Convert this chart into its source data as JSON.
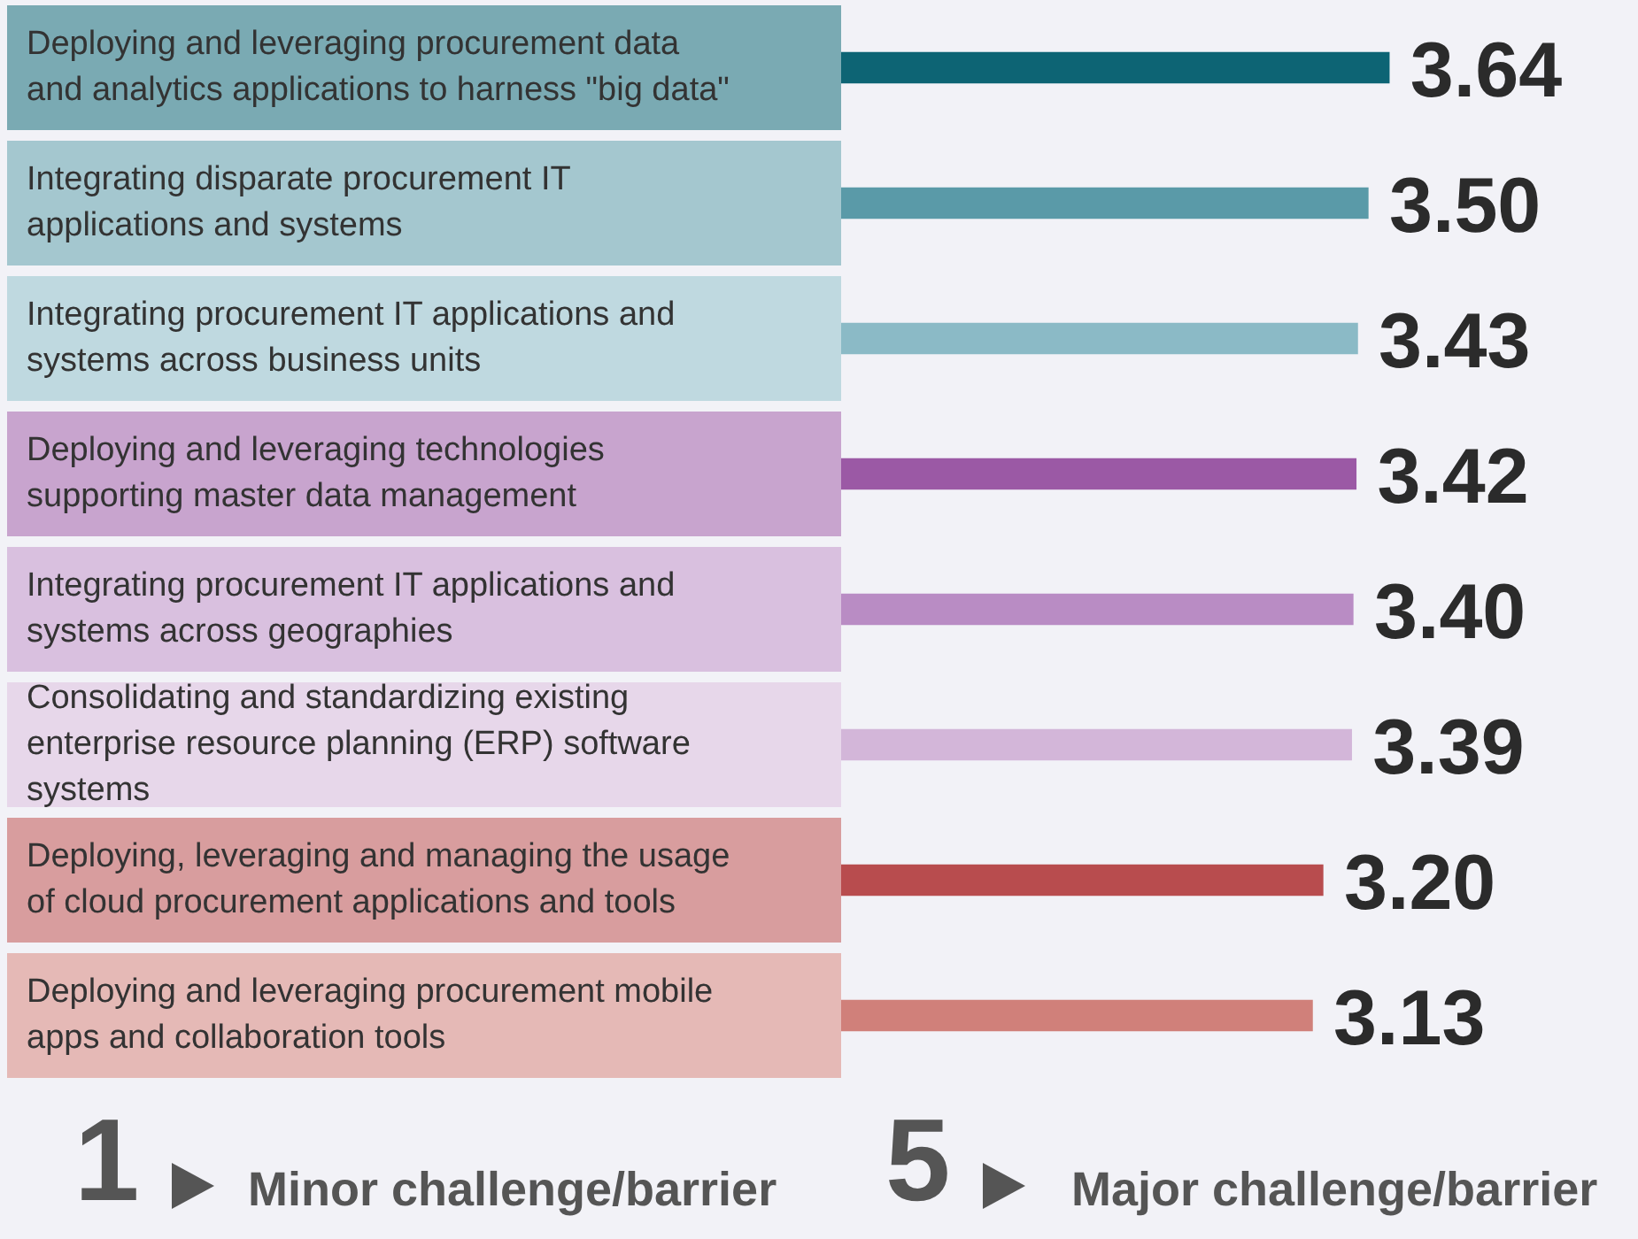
{
  "chart_data": {
    "type": "bar",
    "orientation": "horizontal",
    "categories": [
      "Deploying and leveraging procurement data and analytics applications to harness \"big data\"",
      "Integrating disparate procurement IT applications and systems",
      "Integrating procurement IT applications and systems across business units",
      "Deploying and leveraging technologies supporting master data management",
      "Integrating procurement IT applications and systems across geographies",
      "Consolidating and standardizing existing enterprise resource planning (ERP) software systems",
      "Deploying, leveraging and managing the usage of cloud procurement applications and tools",
      "Deploying and leveraging procurement mobile apps and collaboration tools"
    ],
    "values": [
      3.64,
      3.5,
      3.43,
      3.42,
      3.4,
      3.39,
      3.2,
      3.13
    ],
    "colors": [
      "#0d6474",
      "#5a9aa8",
      "#8bbac6",
      "#9b59a5",
      "#b98cc4",
      "#d3b6d9",
      "#b84c4e",
      "#d0807a"
    ],
    "value_labels": [
      "3.64",
      "3.50",
      "3.43",
      "3.42",
      "3.40",
      "3.39",
      "3.20",
      "3.13"
    ],
    "tick_labels": false,
    "legend": false,
    "annotations": [
      "1",
      "Minor challenge/barrier",
      "5",
      "Major challenge/barrier"
    ]
  }
}
